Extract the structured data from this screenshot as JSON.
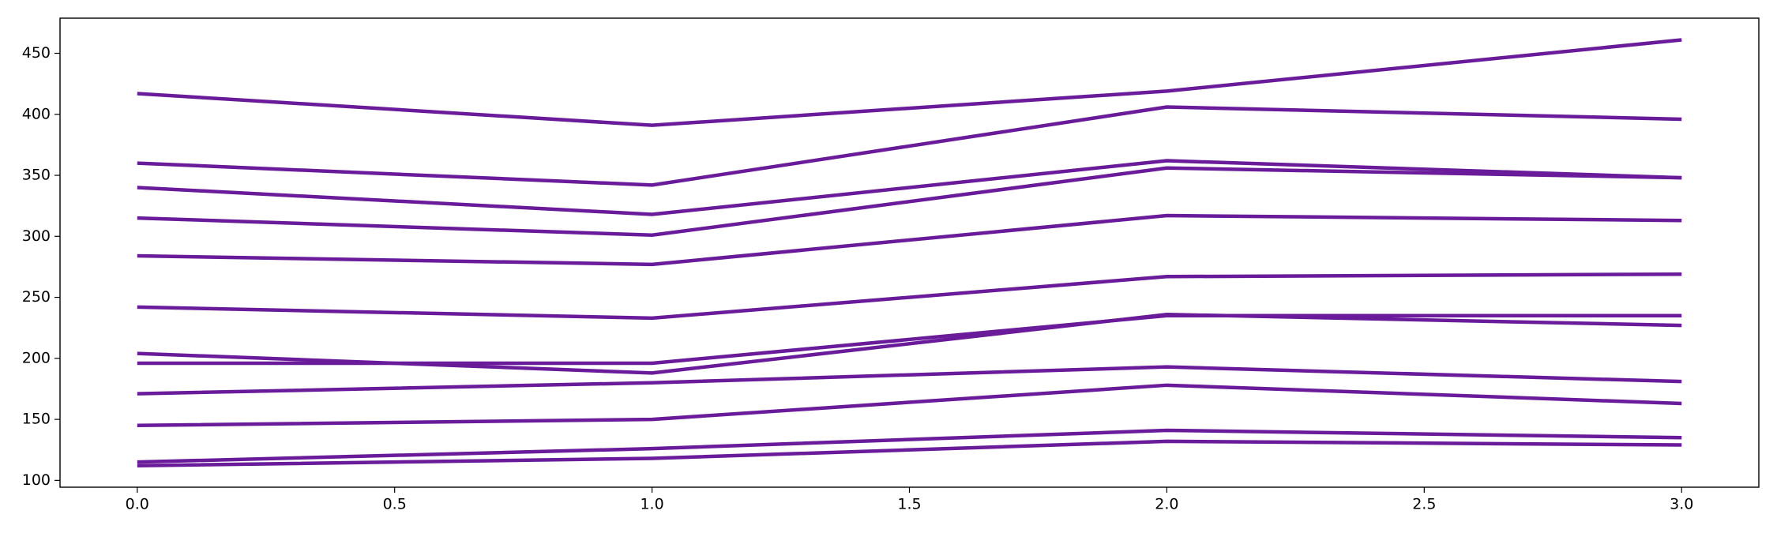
{
  "chart_data": {
    "type": "line",
    "x": [
      0,
      1,
      2,
      3
    ],
    "series": [
      {
        "color": "#6a1b9a",
        "values": [
          417,
          391,
          419,
          461
        ]
      },
      {
        "color": "#6a1b9a",
        "values": [
          360,
          342,
          406,
          396
        ]
      },
      {
        "color": "#6a1b9a",
        "values": [
          340,
          318,
          362,
          348
        ]
      },
      {
        "color": "#6a1b9a",
        "values": [
          315,
          301,
          356,
          348
        ]
      },
      {
        "color": "#6a1b9a",
        "values": [
          284,
          277,
          317,
          313
        ]
      },
      {
        "color": "#6a1b9a",
        "values": [
          242,
          233,
          267,
          269
        ]
      },
      {
        "color": "#6a1b9a",
        "values": [
          204,
          188,
          236,
          227
        ]
      },
      {
        "color": "#6a1b9a",
        "values": [
          196,
          196,
          235,
          235
        ]
      },
      {
        "color": "#6a1b9a",
        "values": [
          171,
          180,
          193,
          181
        ]
      },
      {
        "color": "#6a1b9a",
        "values": [
          145,
          150,
          178,
          163
        ]
      },
      {
        "color": "#6a1b9a",
        "values": [
          115,
          126,
          141,
          135
        ]
      },
      {
        "color": "#6a1b9a",
        "values": [
          112,
          118,
          132,
          129
        ]
      }
    ],
    "xlim": [
      -0.15,
      3.15
    ],
    "xticks": [
      {
        "value": 0,
        "label": "0.0"
      },
      0.5,
      {
        "value": 1,
        "label": "1.0"
      },
      1.5,
      {
        "value": 2,
        "label": "2.0"
      },
      2.5,
      {
        "value": 3,
        "label": "3.0"
      }
    ],
    "ylim": [
      94.4,
      478.8
    ],
    "yticks": [
      100,
      150,
      200,
      250,
      300,
      350,
      400,
      450
    ],
    "grid": false
  }
}
